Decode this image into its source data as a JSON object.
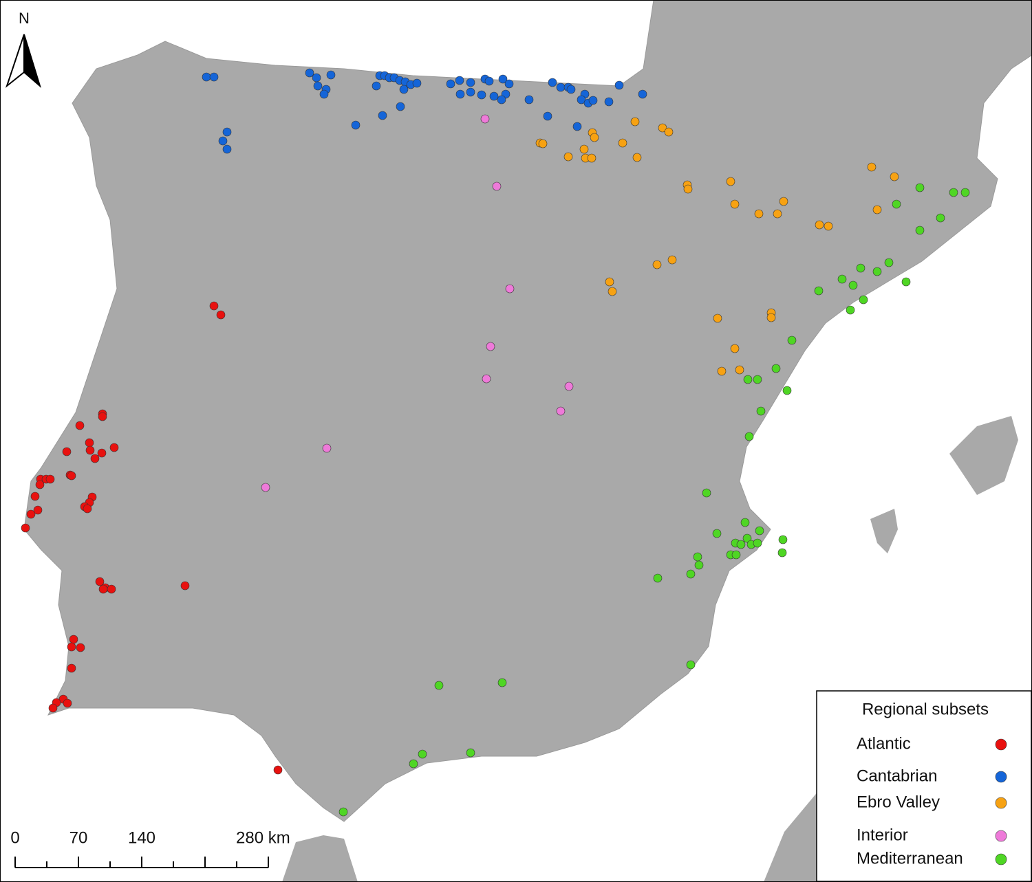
{
  "north_arrow": {
    "label": "N"
  },
  "scale_bar": {
    "labels": [
      "0",
      "70",
      "140",
      "280 km"
    ]
  },
  "legend": {
    "title": "Regional subsets",
    "items": [
      {
        "label": "Atlantic",
        "color": "#e8110f"
      },
      {
        "label": "Cantabrian",
        "color": "#1565d8"
      },
      {
        "label": "Ebro Valley",
        "color": "#f7a213"
      },
      {
        "label": "Interior",
        "color": "#ee7ad9"
      },
      {
        "label": "Mediterranean",
        "color": "#4fd624"
      }
    ]
  }
}
